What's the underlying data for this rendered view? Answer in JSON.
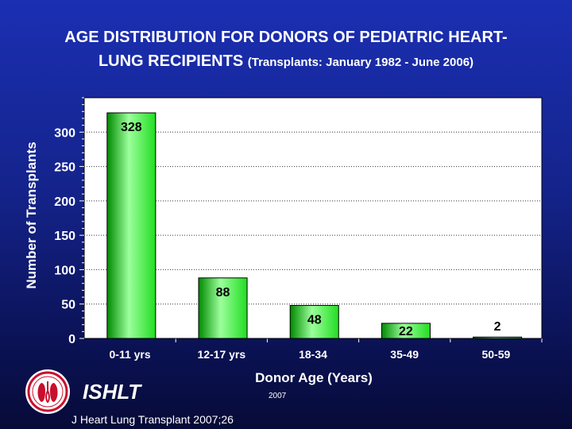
{
  "page": {
    "title_line1": "AGE DISTRIBUTION FOR DONORS OF PEDIATRIC HEART-",
    "title_line2": "LUNG RECIPIENTS",
    "subtitle": "(Transplants: January 1982 - June 2006)",
    "org": "ISHLT",
    "year": "2007",
    "citation": "J Heart Lung Transplant 2007;26"
  },
  "colors": {
    "bar": "#22dd22",
    "bar_dark": "#008a00",
    "bar_light": "#9cff9c",
    "plot_bg": "#ffffff",
    "grid": "#333333",
    "logo_red": "#c8102e"
  },
  "chart_data": {
    "type": "bar",
    "categories": [
      "0-11 yrs",
      "12-17 yrs",
      "18-34",
      "35-49",
      "50-59"
    ],
    "values": [
      328,
      88,
      48,
      22,
      2
    ],
    "data_labels": [
      "328",
      "88",
      "48",
      "22",
      "2"
    ],
    "xlabel": "Donor Age (Years)",
    "ylabel": "Number of Transplants",
    "ylim": [
      0,
      350
    ],
    "yticks": [
      0,
      50,
      100,
      150,
      200,
      250,
      300
    ],
    "grid": true
  }
}
